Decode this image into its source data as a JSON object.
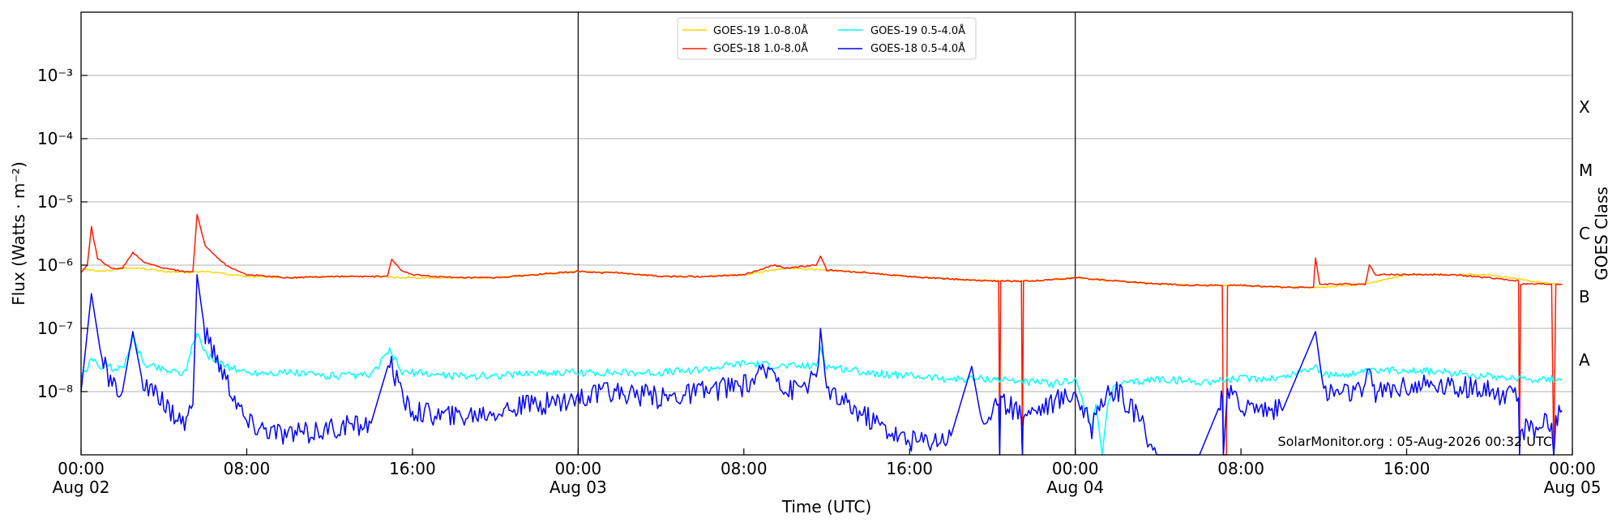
{
  "chart_data": {
    "type": "line",
    "title": "",
    "xlabel": "Time (UTC)",
    "ylabel": "Flux (Watts · m⁻²)",
    "ylabel_right": "GOES Class",
    "yscale": "log",
    "xlim": [
      "2026-08-02 00:00",
      "2026-08-05 00:00"
    ],
    "ylim": [
      1e-09,
      0.01
    ],
    "grid": "horizontal at each decade",
    "day_markers": [
      "2026-08-03 00:00",
      "2026-08-04 00:00"
    ],
    "x_ticks": [
      {
        "t": 0,
        "line1": "00:00",
        "line2": "Aug 02"
      },
      {
        "t": 8,
        "line1": "08:00",
        "line2": ""
      },
      {
        "t": 16,
        "line1": "16:00",
        "line2": ""
      },
      {
        "t": 24,
        "line1": "00:00",
        "line2": "Aug 03"
      },
      {
        "t": 32,
        "line1": "08:00",
        "line2": ""
      },
      {
        "t": 40,
        "line1": "16:00",
        "line2": ""
      },
      {
        "t": 48,
        "line1": "00:00",
        "line2": "Aug 04"
      },
      {
        "t": 56,
        "line1": "08:00",
        "line2": ""
      },
      {
        "t": 64,
        "line1": "16:00",
        "line2": ""
      },
      {
        "t": 72,
        "line1": "00:00",
        "line2": "Aug 05"
      }
    ],
    "y_ticks": [
      {
        "exp": -8,
        "label": "10⁻⁸"
      },
      {
        "exp": -7,
        "label": "10⁻⁷"
      },
      {
        "exp": -6,
        "label": "10⁻⁶"
      },
      {
        "exp": -5,
        "label": "10⁻⁵"
      },
      {
        "exp": -4,
        "label": "10⁻⁴"
      },
      {
        "exp": -3,
        "label": "10⁻³"
      }
    ],
    "goes_classes": [
      {
        "label": "A",
        "exp": -7.5
      },
      {
        "label": "B",
        "exp": -6.5
      },
      {
        "label": "C",
        "exp": -5.5
      },
      {
        "label": "M",
        "exp": -4.5
      },
      {
        "label": "X",
        "exp": -3.5
      }
    ],
    "legend_position": "top-center",
    "watermark": "SolarMonitor.org : 05-Aug-2026 00:32 UTC",
    "series": [
      {
        "name": "GOES-19 1.0-8.0Å",
        "color": "#ffd700",
        "points": [
          [
            0,
            -6.05
          ],
          [
            1,
            -6.1
          ],
          [
            2,
            -6.05
          ],
          [
            3,
            -6.05
          ],
          [
            4,
            -6.1
          ],
          [
            5,
            -6.12
          ],
          [
            6,
            -6.1
          ],
          [
            8,
            -6.18
          ],
          [
            10,
            -6.2
          ],
          [
            12,
            -6.18
          ],
          [
            14,
            -6.18
          ],
          [
            16,
            -6.2
          ],
          [
            18,
            -6.2
          ],
          [
            20,
            -6.2
          ],
          [
            22,
            -6.15
          ],
          [
            24,
            -6.1
          ],
          [
            26,
            -6.12
          ],
          [
            28,
            -6.18
          ],
          [
            30,
            -6.18
          ],
          [
            32,
            -6.15
          ],
          [
            34,
            -6.05
          ],
          [
            36,
            -6.08
          ],
          [
            38,
            -6.12
          ],
          [
            40,
            -6.18
          ],
          [
            42,
            -6.22
          ],
          [
            44,
            -6.25
          ],
          [
            46,
            -6.25
          ],
          [
            48,
            -6.2
          ],
          [
            50,
            -6.25
          ],
          [
            52,
            -6.3
          ],
          [
            54,
            -6.32
          ],
          [
            56,
            -6.32
          ],
          [
            58,
            -6.35
          ],
          [
            60,
            -6.35
          ],
          [
            62,
            -6.3
          ],
          [
            64,
            -6.15
          ],
          [
            66,
            -6.15
          ],
          [
            68,
            -6.15
          ],
          [
            70,
            -6.25
          ],
          [
            71,
            -6.3
          ],
          [
            71.5,
            -6.3
          ]
        ]
      },
      {
        "name": "GOES-18 1.0-8.0Å",
        "color": "#ff1a00",
        "points": [
          [
            0,
            -6.12
          ],
          [
            0.3,
            -6.0
          ],
          [
            0.5,
            -5.4
          ],
          [
            0.8,
            -5.9
          ],
          [
            1.5,
            -6.05
          ],
          [
            2,
            -6.05
          ],
          [
            2.5,
            -5.8
          ],
          [
            3,
            -5.95
          ],
          [
            4,
            -6.05
          ],
          [
            5,
            -6.1
          ],
          [
            5.4,
            -6.1
          ],
          [
            5.6,
            -5.2
          ],
          [
            6,
            -5.7
          ],
          [
            7,
            -6.0
          ],
          [
            8,
            -6.15
          ],
          [
            10,
            -6.2
          ],
          [
            12,
            -6.18
          ],
          [
            14,
            -6.18
          ],
          [
            14.8,
            -6.18
          ],
          [
            15,
            -5.9
          ],
          [
            15.5,
            -6.1
          ],
          [
            16,
            -6.15
          ],
          [
            18,
            -6.2
          ],
          [
            20,
            -6.2
          ],
          [
            22,
            -6.15
          ],
          [
            24,
            -6.1
          ],
          [
            25,
            -6.12
          ],
          [
            26,
            -6.12
          ],
          [
            28,
            -6.18
          ],
          [
            30,
            -6.18
          ],
          [
            32,
            -6.15
          ],
          [
            33.5,
            -6.0
          ],
          [
            34,
            -6.05
          ],
          [
            35.5,
            -6.0
          ],
          [
            35.7,
            -5.85
          ],
          [
            36,
            -6.08
          ],
          [
            38,
            -6.12
          ],
          [
            40,
            -6.18
          ],
          [
            42,
            -6.22
          ],
          [
            44,
            -6.25
          ],
          [
            44.3,
            -6.25
          ],
          [
            44.35,
            -9.0
          ],
          [
            44.4,
            -6.25
          ],
          [
            45.4,
            -6.25
          ],
          [
            45.45,
            -9.0
          ],
          [
            45.5,
            -6.25
          ],
          [
            46,
            -6.25
          ],
          [
            48,
            -6.2
          ],
          [
            50,
            -6.25
          ],
          [
            52,
            -6.3
          ],
          [
            54,
            -6.32
          ],
          [
            55.1,
            -6.32
          ],
          [
            55.15,
            -9.0
          ],
          [
            55.3,
            -9.0
          ],
          [
            55.35,
            -6.32
          ],
          [
            56,
            -6.32
          ],
          [
            58,
            -6.35
          ],
          [
            59.5,
            -6.35
          ],
          [
            59.6,
            -5.9
          ],
          [
            59.8,
            -6.3
          ],
          [
            60,
            -6.3
          ],
          [
            62,
            -6.3
          ],
          [
            62.2,
            -6.0
          ],
          [
            62.5,
            -6.15
          ],
          [
            64,
            -6.15
          ],
          [
            66,
            -6.15
          ],
          [
            68,
            -6.2
          ],
          [
            69.4,
            -6.25
          ],
          [
            69.45,
            -9.0
          ],
          [
            69.5,
            -6.3
          ],
          [
            71,
            -6.3
          ],
          [
            71.1,
            -9.0
          ],
          [
            71.2,
            -6.3
          ],
          [
            71.5,
            -6.3
          ]
        ]
      },
      {
        "name": "GOES-19 0.5-4.0Å",
        "color": "#00ffff",
        "points": [
          [
            0,
            -7.8
          ],
          [
            0.5,
            -7.5
          ],
          [
            1,
            -7.6
          ],
          [
            2,
            -7.65
          ],
          [
            2.5,
            -7.15
          ],
          [
            3,
            -7.55
          ],
          [
            4,
            -7.65
          ],
          [
            5,
            -7.7
          ],
          [
            5.6,
            -7.05
          ],
          [
            6,
            -7.4
          ],
          [
            7,
            -7.6
          ],
          [
            8,
            -7.7
          ],
          [
            10,
            -7.7
          ],
          [
            12,
            -7.75
          ],
          [
            14,
            -7.75
          ],
          [
            14.9,
            -7.35
          ],
          [
            15.5,
            -7.7
          ],
          [
            16,
            -7.7
          ],
          [
            18,
            -7.75
          ],
          [
            20,
            -7.75
          ],
          [
            22,
            -7.7
          ],
          [
            24,
            -7.7
          ],
          [
            26,
            -7.7
          ],
          [
            28,
            -7.7
          ],
          [
            30,
            -7.65
          ],
          [
            32,
            -7.55
          ],
          [
            34,
            -7.6
          ],
          [
            35.5,
            -7.6
          ],
          [
            35.7,
            -7.3
          ],
          [
            36,
            -7.6
          ],
          [
            38,
            -7.7
          ],
          [
            40,
            -7.75
          ],
          [
            42,
            -7.8
          ],
          [
            44,
            -7.8
          ],
          [
            46,
            -7.85
          ],
          [
            47,
            -7.88
          ],
          [
            48,
            -7.8
          ],
          [
            48.8,
            -8.6
          ],
          [
            49,
            -8.2
          ],
          [
            49.3,
            -9.0
          ],
          [
            49.6,
            -8.1
          ],
          [
            50,
            -7.9
          ],
          [
            51,
            -7.85
          ],
          [
            52,
            -7.8
          ],
          [
            54,
            -7.85
          ],
          [
            56,
            -7.8
          ],
          [
            58,
            -7.78
          ],
          [
            59.6,
            -7.6
          ],
          [
            60,
            -7.75
          ],
          [
            62,
            -7.7
          ],
          [
            64,
            -7.65
          ],
          [
            66,
            -7.7
          ],
          [
            68,
            -7.75
          ],
          [
            70,
            -7.8
          ],
          [
            71.5,
            -7.8
          ]
        ]
      },
      {
        "name": "GOES-18 0.5-4.0Å",
        "color": "#0000ff",
        "points": [
          [
            0,
            -8.0
          ],
          [
            0.5,
            -6.45
          ],
          [
            1,
            -7.5
          ],
          [
            1.5,
            -7.9
          ],
          [
            2,
            -8.0
          ],
          [
            2.5,
            -7.05
          ],
          [
            3,
            -7.9
          ],
          [
            4,
            -8.2
          ],
          [
            5,
            -8.5
          ],
          [
            5.4,
            -8.2
          ],
          [
            5.6,
            -6.15
          ],
          [
            6,
            -7.1
          ],
          [
            7,
            -7.8
          ],
          [
            8,
            -8.5
          ],
          [
            10,
            -8.7
          ],
          [
            12,
            -8.6
          ],
          [
            14,
            -8.5
          ],
          [
            14.9,
            -7.5
          ],
          [
            15.5,
            -8.1
          ],
          [
            16,
            -8.3
          ],
          [
            18,
            -8.4
          ],
          [
            20,
            -8.3
          ],
          [
            22,
            -8.2
          ],
          [
            24,
            -8.1
          ],
          [
            26,
            -8.0
          ],
          [
            28,
            -8.1
          ],
          [
            30,
            -8.0
          ],
          [
            32,
            -7.9
          ],
          [
            33.5,
            -7.6
          ],
          [
            34,
            -8.0
          ],
          [
            35.5,
            -7.8
          ],
          [
            35.7,
            -7.0
          ],
          [
            36,
            -8.0
          ],
          [
            38,
            -8.4
          ],
          [
            40,
            -8.8
          ],
          [
            42,
            -8.7
          ],
          [
            43,
            -7.6
          ],
          [
            43.5,
            -8.5
          ],
          [
            44,
            -8.3
          ],
          [
            44.3,
            -8.2
          ],
          [
            44.35,
            -9.0
          ],
          [
            44.4,
            -8.2
          ],
          [
            45.4,
            -8.3
          ],
          [
            45.45,
            -9.0
          ],
          [
            45.5,
            -8.3
          ],
          [
            46,
            -8.3
          ],
          [
            48,
            -8.0
          ],
          [
            48.8,
            -8.6
          ],
          [
            49,
            -8.2
          ],
          [
            50,
            -8.0
          ],
          [
            51,
            -8.4
          ],
          [
            52,
            -9.0
          ],
          [
            54,
            -9.0
          ],
          [
            55,
            -8.2
          ],
          [
            55.1,
            -8.1
          ],
          [
            55.15,
            -9.0
          ],
          [
            55.35,
            -8.0
          ],
          [
            56,
            -8.2
          ],
          [
            58,
            -8.3
          ],
          [
            59.6,
            -7.05
          ],
          [
            60,
            -8.0
          ],
          [
            62,
            -8.0
          ],
          [
            62.2,
            -7.6
          ],
          [
            62.5,
            -8.0
          ],
          [
            64,
            -7.9
          ],
          [
            66,
            -7.9
          ],
          [
            68,
            -8.0
          ],
          [
            69.4,
            -8.1
          ],
          [
            69.45,
            -9.0
          ],
          [
            69.5,
            -8.6
          ],
          [
            71,
            -8.5
          ],
          [
            71.1,
            -9.0
          ],
          [
            71.2,
            -8.4
          ],
          [
            71.5,
            -8.3
          ]
        ]
      }
    ]
  }
}
